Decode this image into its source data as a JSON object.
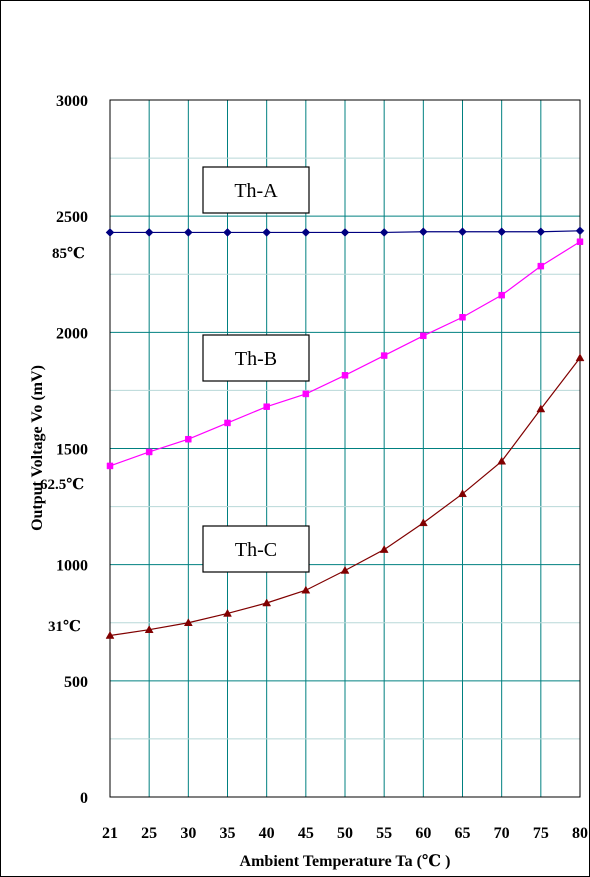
{
  "chart_data": {
    "type": "line",
    "x": [
      21,
      25,
      30,
      35,
      40,
      45,
      50,
      55,
      60,
      65,
      70,
      75,
      80
    ],
    "xlabel": "Ambient Temperature Ta (℃ )",
    "ylabel": "Output Voltage Vo (mV)",
    "ylim": [
      0,
      3000
    ],
    "yticks": [
      0,
      500,
      1000,
      1500,
      2000,
      2500,
      3000
    ],
    "grid": true,
    "series": [
      {
        "name": "Th-A",
        "color": "#000080",
        "marker": "diamond",
        "values": [
          2430,
          2430,
          2430,
          2430,
          2430,
          2430,
          2430,
          2430,
          2433,
          2433,
          2433,
          2433,
          2437
        ]
      },
      {
        "name": "Th-B",
        "color": "#ff00ff",
        "marker": "square",
        "values": [
          1425,
          1485,
          1540,
          1610,
          1680,
          1735,
          1815,
          1900,
          1985,
          2065,
          2160,
          2285,
          2390
        ]
      },
      {
        "name": "Th-C",
        "color": "#800000",
        "marker": "triangle",
        "values": [
          695,
          720,
          750,
          790,
          835,
          890,
          975,
          1065,
          1180,
          1305,
          1445,
          1670,
          1890
        ]
      }
    ],
    "annotations": [
      "85℃",
      "62.5℃",
      "31℃"
    ]
  }
}
